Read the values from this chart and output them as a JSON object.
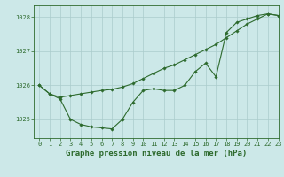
{
  "title": "Graphe pression niveau de la mer (hPa)",
  "background_color": "#cce8e8",
  "line_color": "#2d6a2d",
  "grid_color": "#aacccc",
  "xlim": [
    -0.5,
    23
  ],
  "ylim": [
    1024.45,
    1028.35
  ],
  "yticks": [
    1025,
    1026,
    1027,
    1028
  ],
  "xticks": [
    0,
    1,
    2,
    3,
    4,
    5,
    6,
    7,
    8,
    9,
    10,
    11,
    12,
    13,
    14,
    15,
    16,
    17,
    18,
    19,
    20,
    21,
    22,
    23
  ],
  "series1_x": [
    0,
    1,
    2,
    3,
    4,
    5,
    6,
    7,
    8,
    9,
    10,
    11,
    12,
    13,
    14,
    15,
    16,
    17,
    18,
    19,
    20,
    21,
    22,
    23
  ],
  "series1_y": [
    1026.0,
    1025.75,
    1025.65,
    1025.7,
    1025.75,
    1025.8,
    1025.85,
    1025.88,
    1025.95,
    1026.05,
    1026.2,
    1026.35,
    1026.5,
    1026.6,
    1026.75,
    1026.9,
    1027.05,
    1027.2,
    1027.4,
    1027.6,
    1027.8,
    1027.95,
    1028.1,
    1028.05
  ],
  "series2_x": [
    0,
    1,
    2,
    3,
    4,
    5,
    6,
    7,
    8,
    9,
    10,
    11,
    12,
    13,
    14,
    15,
    16,
    17,
    18,
    19,
    20,
    21,
    22,
    23
  ],
  "series2_y": [
    1026.0,
    1025.75,
    1025.6,
    1025.0,
    1024.85,
    1024.78,
    1024.75,
    1024.72,
    1025.0,
    1025.5,
    1025.85,
    1025.9,
    1025.85,
    1025.85,
    1026.0,
    1026.4,
    1026.65,
    1026.25,
    1027.55,
    1027.85,
    1027.95,
    1028.05,
    1028.1,
    1028.05
  ],
  "title_fontsize": 6.5,
  "tick_fontsize": 5.0,
  "marker": "D",
  "markersize": 1.8,
  "linewidth": 0.8
}
